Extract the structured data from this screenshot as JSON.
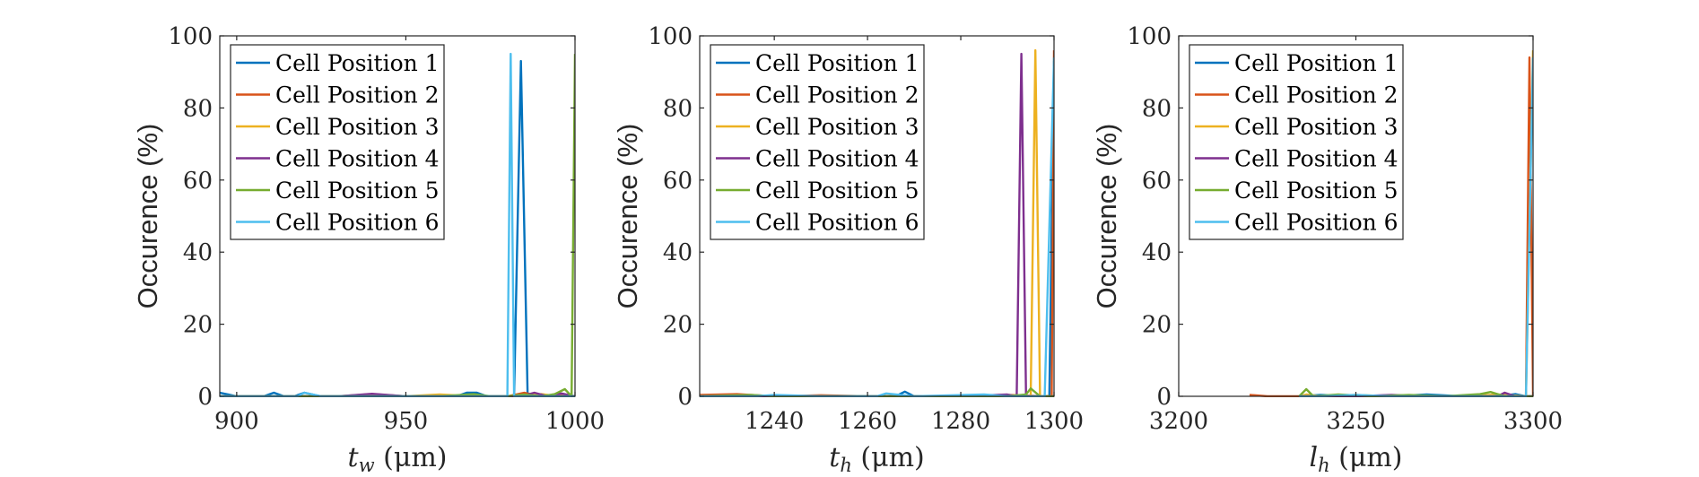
{
  "chart_data": [
    {
      "type": "line",
      "ylabel": "Occurence (%)",
      "xlabel": "t_w (μm)",
      "xlabel_parts": {
        "sym": "t",
        "sub": "w",
        "unit": " (μm)"
      },
      "xlim": [
        895,
        1000
      ],
      "ylim": [
        0,
        100
      ],
      "xticks": [
        900,
        950,
        1000
      ],
      "yticks": [
        0,
        20,
        40,
        60,
        80,
        100
      ],
      "xtick_labels": [
        "900",
        "950",
        "1000"
      ],
      "ytick_labels": [
        "0",
        "20",
        "40",
        "60",
        "80",
        "100"
      ],
      "legend": [
        "Cell Position 1",
        "Cell Position 2",
        "Cell Position 3",
        "Cell Position 4",
        "Cell Position 5",
        "Cell Position 6"
      ],
      "series": [
        {
          "name": "Cell Position 1",
          "color": "#0072BD",
          "x": [
            895,
            900,
            905,
            908,
            911,
            914,
            917,
            920,
            925,
            930,
            935,
            940,
            945,
            950,
            955,
            960,
            965,
            968,
            971,
            974,
            977,
            980,
            982,
            984,
            986,
            988,
            990,
            993,
            996,
            999,
            1000
          ],
          "y": [
            1.0,
            0,
            0,
            0,
            1.0,
            0,
            0,
            1.0,
            0,
            0,
            0,
            0,
            0,
            0,
            0,
            0,
            0,
            1.0,
            1.0,
            0,
            0,
            0,
            0,
            93,
            0,
            0,
            0,
            0,
            0,
            0,
            0
          ]
        },
        {
          "name": "Cell Position 2",
          "color": "#D95319",
          "x": [
            895,
            910,
            920,
            930,
            940,
            950,
            960,
            970,
            980,
            985,
            990,
            995,
            999,
            1000
          ],
          "y": [
            0,
            0,
            0,
            0,
            0.6,
            0,
            0,
            0,
            0,
            1.0,
            0,
            0.6,
            0,
            0
          ]
        },
        {
          "name": "Cell Position 3",
          "color": "#EDB120",
          "x": [
            895,
            910,
            920,
            930,
            940,
            950,
            960,
            970,
            980,
            985,
            990,
            995,
            1000
          ],
          "y": [
            0,
            0,
            0,
            0,
            0,
            0,
            0.5,
            0,
            0,
            0,
            0.6,
            0,
            0
          ]
        },
        {
          "name": "Cell Position 4",
          "color": "#7E2F8E",
          "x": [
            895,
            910,
            920,
            930,
            940,
            950,
            960,
            970,
            980,
            984,
            988,
            992,
            996,
            1000
          ],
          "y": [
            0,
            0,
            0,
            0,
            0.7,
            0,
            0,
            0,
            0,
            0,
            1.0,
            0,
            0.8,
            0
          ]
        },
        {
          "name": "Cell Position 5",
          "color": "#77AC30",
          "x": [
            895,
            910,
            920,
            930,
            940,
            950,
            960,
            970,
            975,
            980,
            985,
            990,
            994,
            997,
            999,
            1000
          ],
          "y": [
            0,
            0,
            0,
            0,
            0,
            0,
            0,
            0.6,
            0,
            0,
            0.5,
            0,
            0.6,
            2.0,
            0,
            95
          ]
        },
        {
          "name": "Cell Position 6",
          "color": "#4DBEEE",
          "x": [
            895,
            910,
            918,
            920,
            925,
            930,
            940,
            950,
            960,
            970,
            975,
            978,
            980,
            981,
            982,
            984,
            990,
            995,
            1000
          ],
          "y": [
            0,
            0,
            0,
            1.0,
            0,
            0,
            0,
            0,
            0,
            0,
            0,
            0,
            0,
            95,
            0,
            0,
            0,
            0,
            0
          ]
        }
      ]
    },
    {
      "type": "line",
      "ylabel": "Occurence (%)",
      "xlabel": "t_h (μm)",
      "xlabel_parts": {
        "sym": "t",
        "sub": "h",
        "unit": " (μm)"
      },
      "xlim": [
        1224,
        1300
      ],
      "ylim": [
        0,
        100
      ],
      "xticks": [
        1240,
        1260,
        1280,
        1300
      ],
      "yticks": [
        0,
        20,
        40,
        60,
        80,
        100
      ],
      "xtick_labels": [
        "1240",
        "1260",
        "1280",
        "1300"
      ],
      "ytick_labels": [
        "0",
        "20",
        "40",
        "60",
        "80",
        "100"
      ],
      "legend": [
        "Cell Position 1",
        "Cell Position 2",
        "Cell Position 3",
        "Cell Position 4",
        "Cell Position 5",
        "Cell Position 6"
      ],
      "series": [
        {
          "name": "Cell Position 1",
          "color": "#0072BD",
          "x": [
            1224,
            1230,
            1240,
            1250,
            1260,
            1266,
            1268,
            1270,
            1280,
            1290,
            1296,
            1299,
            1300
          ],
          "y": [
            0,
            0,
            0,
            0,
            0,
            0,
            1.3,
            0,
            0,
            0,
            0,
            0,
            93
          ]
        },
        {
          "name": "Cell Position 2",
          "color": "#D95319",
          "x": [
            1224,
            1232,
            1240,
            1250,
            1260,
            1270,
            1280,
            1290,
            1298,
            1299.5,
            1300
          ],
          "y": [
            0.4,
            0.6,
            0,
            0.3,
            0,
            0,
            0,
            0.4,
            0,
            0,
            96
          ]
        },
        {
          "name": "Cell Position 3",
          "color": "#EDB120",
          "x": [
            1224,
            1230,
            1240,
            1250,
            1260,
            1270,
            1280,
            1290,
            1295,
            1296,
            1297,
            1298,
            1300
          ],
          "y": [
            0,
            0,
            0,
            0,
            0,
            0,
            0,
            0,
            0,
            96,
            0,
            0,
            0
          ]
        },
        {
          "name": "Cell Position 4",
          "color": "#7E2F8E",
          "x": [
            1224,
            1230,
            1240,
            1250,
            1260,
            1270,
            1280,
            1290,
            1292,
            1293,
            1294,
            1296,
            1300
          ],
          "y": [
            0,
            0,
            0,
            0,
            0,
            0,
            0,
            0.5,
            0,
            95,
            0,
            0,
            0
          ]
        },
        {
          "name": "Cell Position 5",
          "color": "#77AC30",
          "x": [
            1224,
            1235,
            1240,
            1250,
            1260,
            1270,
            1280,
            1290,
            1294,
            1295,
            1297,
            1300
          ],
          "y": [
            0,
            0.4,
            0,
            0,
            0,
            0,
            0,
            0,
            0.5,
            2.2,
            0,
            0
          ]
        },
        {
          "name": "Cell Position 6",
          "color": "#4DBEEE",
          "x": [
            1224,
            1236,
            1240,
            1250,
            1262,
            1264,
            1270,
            1285,
            1290,
            1298,
            1300
          ],
          "y": [
            0,
            0,
            0.4,
            0,
            0,
            0.8,
            0,
            0.5,
            0,
            0,
            94
          ]
        }
      ]
    },
    {
      "type": "line",
      "ylabel": "Occurence (%)",
      "xlabel": "l_h (μm)",
      "xlabel_parts": {
        "sym": "l",
        "sub": "h",
        "unit": " (μm)"
      },
      "xlim": [
        3200,
        3300
      ],
      "ylim": [
        0,
        100
      ],
      "xticks": [
        3200,
        3250,
        3300
      ],
      "yticks": [
        0,
        20,
        40,
        60,
        80,
        100
      ],
      "xtick_labels": [
        "3200",
        "3250",
        "3300"
      ],
      "ytick_labels": [
        "0",
        "20",
        "40",
        "60",
        "80",
        "100"
      ],
      "legend": [
        "Cell Position 1",
        "Cell Position 2",
        "Cell Position 3",
        "Cell Position 4",
        "Cell Position 5",
        "Cell Position 6"
      ],
      "series": [
        {
          "name": "Cell Position 1",
          "color": "#0072BD",
          "x": [
            3234,
            3240,
            3250,
            3260,
            3270,
            3280,
            3290,
            3295,
            3298,
            3300
          ],
          "y": [
            0,
            0.4,
            0,
            0,
            0.5,
            0,
            0,
            0.6,
            0,
            0
          ]
        },
        {
          "name": "Cell Position 2",
          "color": "#D95319",
          "x": [
            3220,
            3225,
            3230,
            3235,
            3240,
            3250,
            3260,
            3270,
            3280,
            3290,
            3298,
            3299,
            3300
          ],
          "y": [
            0.4,
            0,
            0,
            0,
            0,
            0,
            0.3,
            0,
            0,
            0.4,
            0,
            94,
            0
          ]
        },
        {
          "name": "Cell Position 3",
          "color": "#EDB120",
          "x": [
            3234,
            3236,
            3240,
            3250,
            3260,
            3270,
            3280,
            3290,
            3298,
            3300
          ],
          "y": [
            0,
            0.5,
            0,
            0.4,
            0,
            0,
            0,
            0.5,
            0,
            96
          ]
        },
        {
          "name": "Cell Position 4",
          "color": "#7E2F8E",
          "x": [
            3234,
            3240,
            3250,
            3260,
            3270,
            3280,
            3290,
            3292,
            3295,
            3298,
            3300
          ],
          "y": [
            0,
            0,
            0,
            0.4,
            0,
            0,
            0,
            1.0,
            0,
            0,
            0
          ]
        },
        {
          "name": "Cell Position 5",
          "color": "#77AC30",
          "x": [
            3234,
            3236,
            3238,
            3245,
            3255,
            3265,
            3275,
            3285,
            3288,
            3292,
            3300
          ],
          "y": [
            0,
            2.0,
            0,
            0.5,
            0,
            0.4,
            0,
            0.6,
            1.2,
            0,
            0
          ]
        },
        {
          "name": "Cell Position 6",
          "color": "#4DBEEE",
          "x": [
            3234,
            3240,
            3250,
            3260,
            3270,
            3280,
            3290,
            3296,
            3298,
            3300
          ],
          "y": [
            0,
            0,
            0.4,
            0,
            0,
            0,
            0,
            0,
            0,
            94
          ]
        }
      ]
    }
  ]
}
